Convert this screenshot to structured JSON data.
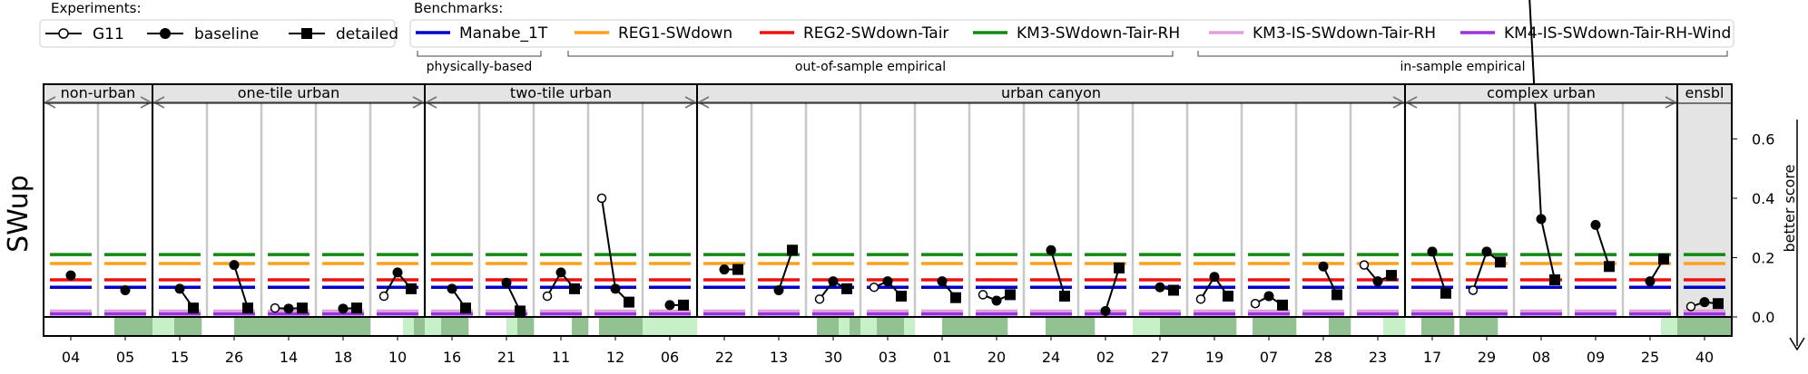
{
  "chart_data": {
    "type": "line",
    "ylabel": "SWup",
    "ylim": [
      0,
      0.72
    ],
    "y_ticks": [
      "0.0",
      "0.2",
      "0.4",
      "0.6"
    ],
    "y_tick_values": [
      0.0,
      0.2,
      0.4,
      0.6
    ],
    "right_annotation": "better score",
    "experiments_title": "Experiments:",
    "experiments": [
      {
        "name": "G11",
        "marker": "open-circle"
      },
      {
        "name": "baseline",
        "marker": "circle"
      },
      {
        "name": "detailed",
        "marker": "square"
      }
    ],
    "benchmarks_title": "Benchmarks:",
    "benchmarks": [
      {
        "name": "Manabe_1T",
        "color": "#0000cc",
        "value": 0.1
      },
      {
        "name": "REG1-SWdown",
        "color": "#ff9f1a",
        "value": 0.18
      },
      {
        "name": "REG2-SWdown-Tair",
        "color": "#ee1111",
        "value": 0.125
      },
      {
        "name": "KM3-SWdown-Tair-RH",
        "color": "#118811",
        "value": 0.21
      },
      {
        "name": "KM3-IS-SWdown-Tair-RH",
        "color": "#dda0dd",
        "value": 0.02
      },
      {
        "name": "KM4-IS-SWdown-Tair-RH-Wind",
        "color": "#9933dd",
        "value": 0.01
      }
    ],
    "benchmark_groups": [
      {
        "label": "physically-based",
        "from": 0,
        "to": 0
      },
      {
        "label": "out-of-sample empirical",
        "from": 1,
        "to": 3
      },
      {
        "label": "in-sample empirical",
        "from": 4,
        "to": 5
      }
    ],
    "groups": [
      {
        "label": "non-urban",
        "start": 0,
        "end": 1,
        "shaded": false
      },
      {
        "label": "one-tile urban",
        "start": 2,
        "end": 6,
        "shaded": false
      },
      {
        "label": "two-tile urban",
        "start": 7,
        "end": 11,
        "shaded": false
      },
      {
        "label": "urban canyon",
        "start": 12,
        "end": 24,
        "shaded": false
      },
      {
        "label": "complex urban",
        "start": 25,
        "end": 29,
        "shaded": false
      },
      {
        "label": "ensbl",
        "start": 30,
        "end": 30,
        "shaded": true
      }
    ],
    "sites": [
      {
        "label": "04",
        "g11": null,
        "baseline": 0.14,
        "detailed": null
      },
      {
        "label": "05",
        "g11": null,
        "baseline": 0.09,
        "detailed": null
      },
      {
        "label": "15",
        "g11": null,
        "baseline": 0.095,
        "detailed": 0.03
      },
      {
        "label": "26",
        "g11": null,
        "baseline": 0.175,
        "detailed": 0.03
      },
      {
        "label": "14",
        "g11": 0.03,
        "baseline": 0.028,
        "detailed": 0.03
      },
      {
        "label": "18",
        "g11": null,
        "baseline": 0.028,
        "detailed": 0.03
      },
      {
        "label": "10",
        "g11": 0.07,
        "baseline": 0.15,
        "detailed": 0.095
      },
      {
        "label": "16",
        "g11": null,
        "baseline": 0.095,
        "detailed": 0.03
      },
      {
        "label": "21",
        "g11": null,
        "baseline": 0.115,
        "detailed": 0.02
      },
      {
        "label": "11",
        "g11": 0.07,
        "baseline": 0.15,
        "detailed": 0.095
      },
      {
        "label": "12",
        "g11": 0.4,
        "baseline": 0.095,
        "detailed": 0.05
      },
      {
        "label": "06",
        "g11": null,
        "baseline": 0.04,
        "detailed": 0.04
      },
      {
        "label": "22",
        "g11": null,
        "baseline": 0.16,
        "detailed": 0.16
      },
      {
        "label": "13",
        "g11": null,
        "baseline": 0.09,
        "detailed": 0.225
      },
      {
        "label": "30",
        "g11": 0.06,
        "baseline": 0.12,
        "detailed": 0.095
      },
      {
        "label": "03",
        "g11": 0.1,
        "baseline": 0.12,
        "detailed": 0.07
      },
      {
        "label": "01",
        "g11": null,
        "baseline": 0.12,
        "detailed": 0.065
      },
      {
        "label": "20",
        "g11": 0.075,
        "baseline": 0.055,
        "detailed": 0.075
      },
      {
        "label": "24",
        "g11": null,
        "baseline": 0.225,
        "detailed": 0.07
      },
      {
        "label": "02",
        "g11": null,
        "baseline": 0.02,
        "detailed": 0.165
      },
      {
        "label": "27",
        "g11": null,
        "baseline": 0.1,
        "detailed": 0.09
      },
      {
        "label": "19",
        "g11": 0.06,
        "baseline": 0.135,
        "detailed": 0.07
      },
      {
        "label": "07",
        "g11": 0.045,
        "baseline": 0.07,
        "detailed": 0.04
      },
      {
        "label": "28",
        "g11": null,
        "baseline": 0.17,
        "detailed": 0.075
      },
      {
        "label": "23",
        "g11": 0.175,
        "baseline": 0.12,
        "detailed": 0.14
      },
      {
        "label": "17",
        "g11": null,
        "baseline": 0.22,
        "detailed": 0.08
      },
      {
        "label": "29",
        "g11": 0.09,
        "baseline": 0.22,
        "detailed": 0.185
      },
      {
        "label": "08",
        "g11": 1.2,
        "baseline": 0.33,
        "detailed": 0.125
      },
      {
        "label": "09",
        "g11": null,
        "baseline": 0.31,
        "detailed": 0.17
      },
      {
        "label": "25",
        "g11": null,
        "baseline": 0.12,
        "detailed": 0.195
      },
      {
        "label": "40",
        "g11": 0.035,
        "baseline": 0.05,
        "detailed": 0.045
      }
    ],
    "ranking_strip": [
      [
        0,
        0,
        0,
        0,
        0,
        0,
        0,
        0,
        0,
        0
      ],
      [
        0,
        0,
        0,
        2,
        2,
        2,
        2,
        2,
        2,
        2
      ],
      [
        1,
        1,
        1,
        1,
        2,
        2,
        2,
        2,
        2,
        0
      ],
      [
        0,
        0,
        0,
        0,
        0,
        2,
        2,
        2,
        2,
        2
      ],
      [
        2,
        2,
        2,
        2,
        2,
        2,
        2,
        2,
        2,
        2
      ],
      [
        2,
        2,
        2,
        2,
        2,
        2,
        2,
        2,
        2,
        2
      ],
      [
        0,
        0,
        0,
        0,
        0,
        0,
        1,
        1,
        2,
        2
      ],
      [
        1,
        1,
        1,
        2,
        2,
        2,
        2,
        2,
        0,
        0
      ],
      [
        0,
        0,
        0,
        0,
        0,
        1,
        1,
        2,
        2,
        2
      ],
      [
        0,
        0,
        0,
        0,
        0,
        0,
        0,
        2,
        2,
        2
      ],
      [
        0,
        0,
        2,
        2,
        2,
        2,
        2,
        2,
        2,
        2
      ],
      [
        1,
        1,
        1,
        1,
        1,
        1,
        1,
        1,
        1,
        1
      ],
      [
        0,
        0,
        0,
        0,
        0,
        0,
        0,
        0,
        0,
        0
      ],
      [
        0,
        0,
        0,
        0,
        0,
        0,
        0,
        0,
        0,
        0
      ],
      [
        0,
        0,
        2,
        2,
        2,
        2,
        1,
        1,
        2,
        2
      ],
      [
        1,
        1,
        1,
        2,
        2,
        2,
        2,
        2,
        1,
        1
      ],
      [
        0,
        0,
        0,
        0,
        0,
        2,
        2,
        2,
        2,
        2
      ],
      [
        2,
        2,
        2,
        2,
        2,
        2,
        2,
        0,
        0,
        0
      ],
      [
        0,
        0,
        0,
        0,
        2,
        2,
        2,
        2,
        2,
        2
      ],
      [
        2,
        2,
        2,
        0,
        0,
        0,
        0,
        0,
        0,
        0
      ],
      [
        1,
        1,
        1,
        1,
        1,
        2,
        2,
        2,
        2,
        2
      ],
      [
        2,
        2,
        2,
        2,
        2,
        2,
        2,
        2,
        2,
        0
      ],
      [
        0,
        0,
        2,
        2,
        2,
        2,
        2,
        2,
        2,
        2
      ],
      [
        0,
        0,
        0,
        0,
        0,
        0,
        2,
        2,
        2,
        2
      ],
      [
        0,
        0,
        0,
        0,
        0,
        0,
        1,
        1,
        1,
        1
      ],
      [
        0,
        0,
        0,
        2,
        2,
        2,
        2,
        2,
        2,
        0
      ],
      [
        2,
        2,
        2,
        2,
        2,
        2,
        2,
        0,
        0,
        0
      ],
      [
        0,
        0,
        0,
        0,
        0,
        0,
        0,
        0,
        0,
        0
      ],
      [
        0,
        0,
        0,
        0,
        0,
        0,
        0,
        0,
        0,
        0
      ],
      [
        0,
        0,
        0,
        0,
        0,
        0,
        0,
        1,
        1,
        1
      ],
      [
        2,
        2,
        2,
        2,
        2,
        2,
        2,
        2,
        2,
        2
      ]
    ]
  }
}
